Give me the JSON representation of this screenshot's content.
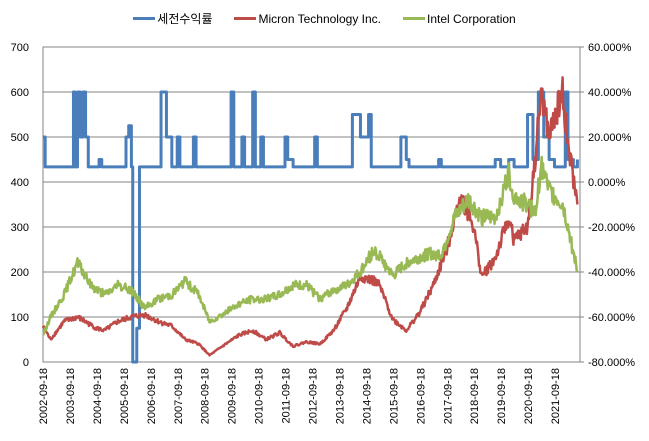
{
  "chart_data": {
    "type": "line",
    "title": "",
    "legend_position": "top",
    "colors": {
      "return": "#4a7ebb",
      "micron": "#be4b48",
      "intel": "#98b954"
    },
    "y_left": {
      "min": 0,
      "max": 700,
      "step": 100,
      "ticks": [
        "0",
        "100",
        "200",
        "300",
        "400",
        "500",
        "600",
        "700"
      ]
    },
    "y_right": {
      "min": -80,
      "max": 60,
      "step": 20,
      "ticks": [
        "-80.000%",
        "-60.000%",
        "-40.000%",
        "-20.000%",
        "0.000%",
        "20.000%",
        "40.000%",
        "60.000%"
      ]
    },
    "x_ticks": [
      "2002-09-18",
      "2003-09-18",
      "2004-09-18",
      "2005-09-18",
      "2006-09-18",
      "2007-09-18",
      "2008-09-18",
      "2009-09-18",
      "2010-09-18",
      "2011-09-18",
      "2012-09-18",
      "2013-09-18",
      "2014-09-18",
      "2015-09-18",
      "2016-09-18",
      "2017-09-18",
      "2018-09-18",
      "2019-09-18",
      "2020-09-18",
      "2021-09-18"
    ],
    "series": [
      {
        "name": "세전수익률",
        "axis": "right",
        "points": [
          [
            2002.72,
            20
          ],
          [
            2002.8,
            6.7
          ],
          [
            2003.85,
            40
          ],
          [
            2003.9,
            6.7
          ],
          [
            2004.0,
            40
          ],
          [
            2004.1,
            20
          ],
          [
            2004.2,
            40
          ],
          [
            2004.3,
            20
          ],
          [
            2004.4,
            6.7
          ],
          [
            2004.8,
            10
          ],
          [
            2004.9,
            6.7
          ],
          [
            2005.8,
            20
          ],
          [
            2005.9,
            25
          ],
          [
            2006.0,
            6.7
          ],
          [
            2006.05,
            -80
          ],
          [
            2006.2,
            -65
          ],
          [
            2006.3,
            6.7
          ],
          [
            2007.1,
            40
          ],
          [
            2007.3,
            20
          ],
          [
            2007.5,
            6.7
          ],
          [
            2007.7,
            20
          ],
          [
            2007.8,
            6.7
          ],
          [
            2008.3,
            20
          ],
          [
            2008.4,
            6.7
          ],
          [
            2009.7,
            40
          ],
          [
            2009.8,
            6.7
          ],
          [
            2010.1,
            20
          ],
          [
            2010.2,
            6.7
          ],
          [
            2010.5,
            40
          ],
          [
            2010.6,
            6.7
          ],
          [
            2010.8,
            20
          ],
          [
            2010.9,
            6.7
          ],
          [
            2011.7,
            20
          ],
          [
            2011.8,
            10
          ],
          [
            2012.0,
            6.7
          ],
          [
            2012.8,
            20
          ],
          [
            2012.9,
            6.7
          ],
          [
            2014.2,
            30
          ],
          [
            2014.5,
            20
          ],
          [
            2014.8,
            30
          ],
          [
            2014.9,
            6.7
          ],
          [
            2016.0,
            20
          ],
          [
            2016.2,
            10
          ],
          [
            2016.3,
            6.7
          ],
          [
            2017.4,
            10
          ],
          [
            2017.5,
            6.7
          ],
          [
            2019.5,
            10
          ],
          [
            2019.7,
            6.7
          ],
          [
            2020.0,
            10
          ],
          [
            2020.2,
            6.7
          ],
          [
            2020.7,
            30
          ],
          [
            2020.9,
            10
          ],
          [
            2021.1,
            40
          ],
          [
            2021.3,
            20
          ],
          [
            2021.5,
            10
          ],
          [
            2021.7,
            6.7
          ],
          [
            2022.1,
            40
          ],
          [
            2022.2,
            10
          ],
          [
            2022.4,
            6.7
          ],
          [
            2022.55,
            10
          ]
        ]
      },
      {
        "name": "Micron Technology Inc.",
        "axis": "left",
        "points": [
          [
            2002.72,
            80
          ],
          [
            2003.0,
            50
          ],
          [
            2003.5,
            90
          ],
          [
            2004.0,
            100
          ],
          [
            2004.7,
            75
          ],
          [
            2005.0,
            70
          ],
          [
            2005.5,
            90
          ],
          [
            2006.0,
            100
          ],
          [
            2006.5,
            105
          ],
          [
            2007.0,
            90
          ],
          [
            2007.5,
            80
          ],
          [
            2008.0,
            50
          ],
          [
            2008.5,
            40
          ],
          [
            2008.9,
            15
          ],
          [
            2009.5,
            40
          ],
          [
            2010.0,
            60
          ],
          [
            2010.5,
            70
          ],
          [
            2011.0,
            50
          ],
          [
            2011.5,
            65
          ],
          [
            2012.0,
            35
          ],
          [
            2012.5,
            45
          ],
          [
            2013.0,
            40
          ],
          [
            2013.5,
            70
          ],
          [
            2014.0,
            120
          ],
          [
            2014.5,
            190
          ],
          [
            2015.0,
            180
          ],
          [
            2015.2,
            170
          ],
          [
            2015.7,
            95
          ],
          [
            2016.2,
            70
          ],
          [
            2016.7,
            110
          ],
          [
            2017.2,
            170
          ],
          [
            2017.7,
            250
          ],
          [
            2018.2,
            370
          ],
          [
            2018.7,
            300
          ],
          [
            2019.0,
            190
          ],
          [
            2019.5,
            230
          ],
          [
            2020.0,
            320
          ],
          [
            2020.2,
            270
          ],
          [
            2020.7,
            300
          ],
          [
            2021.0,
            460
          ],
          [
            2021.2,
            600
          ],
          [
            2021.5,
            500
          ],
          [
            2022.0,
            600
          ],
          [
            2022.2,
            480
          ],
          [
            2022.55,
            350
          ]
        ]
      },
      {
        "name": "Intel Corporation",
        "axis": "left",
        "points": [
          [
            2002.72,
            60
          ],
          [
            2003.0,
            100
          ],
          [
            2003.5,
            150
          ],
          [
            2004.0,
            220
          ],
          [
            2004.5,
            170
          ],
          [
            2005.0,
            150
          ],
          [
            2005.5,
            170
          ],
          [
            2006.0,
            160
          ],
          [
            2006.5,
            120
          ],
          [
            2007.0,
            140
          ],
          [
            2007.5,
            150
          ],
          [
            2008.0,
            180
          ],
          [
            2008.5,
            150
          ],
          [
            2008.9,
            90
          ],
          [
            2009.5,
            110
          ],
          [
            2010.0,
            130
          ],
          [
            2010.5,
            140
          ],
          [
            2011.0,
            140
          ],
          [
            2011.5,
            150
          ],
          [
            2012.0,
            170
          ],
          [
            2012.5,
            170
          ],
          [
            2013.0,
            140
          ],
          [
            2013.5,
            160
          ],
          [
            2014.0,
            170
          ],
          [
            2014.5,
            200
          ],
          [
            2015.0,
            250
          ],
          [
            2015.5,
            210
          ],
          [
            2015.7,
            190
          ],
          [
            2016.2,
            220
          ],
          [
            2017.0,
            240
          ],
          [
            2017.5,
            240
          ],
          [
            2018.0,
            320
          ],
          [
            2018.5,
            360
          ],
          [
            2019.0,
            320
          ],
          [
            2019.5,
            320
          ],
          [
            2020.0,
            420
          ],
          [
            2020.2,
            370
          ],
          [
            2020.7,
            350
          ],
          [
            2021.0,
            330
          ],
          [
            2021.2,
            440
          ],
          [
            2021.5,
            380
          ],
          [
            2022.0,
            350
          ],
          [
            2022.2,
            300
          ],
          [
            2022.55,
            200
          ]
        ]
      }
    ]
  }
}
